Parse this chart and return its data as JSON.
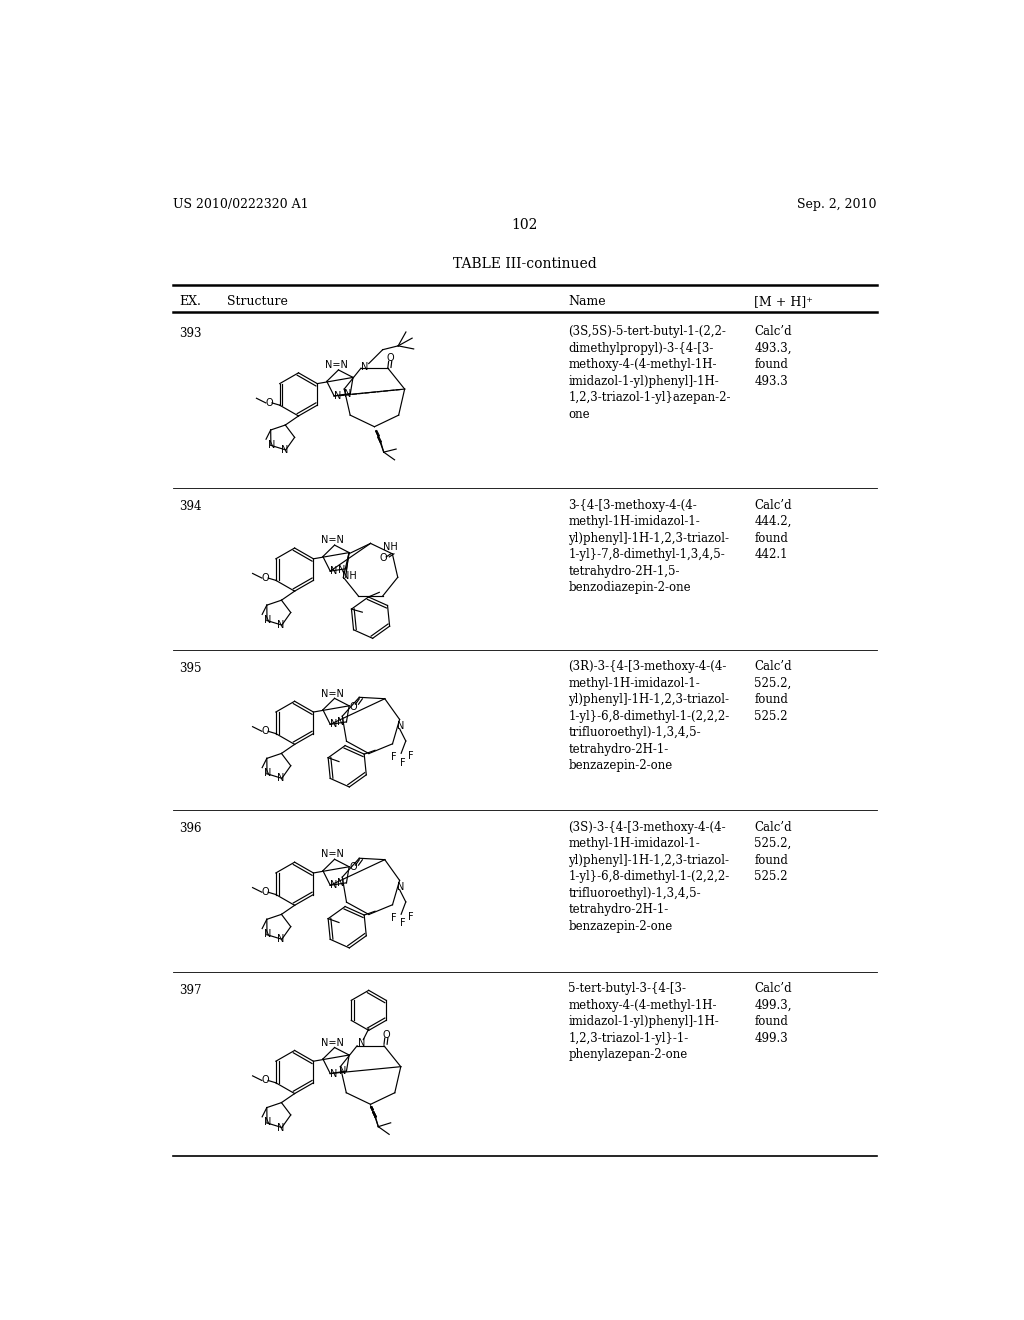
{
  "page_header_left": "US 2010/0222320 A1",
  "page_header_right": "Sep. 2, 2010",
  "page_number": "102",
  "table_title": "TABLE III-continued",
  "background_color": "#ffffff",
  "text_color": "#000000",
  "rows": [
    {
      "ex": "393",
      "name": "(3S,5S)-5-tert-butyl-1-(2,2-\ndimethylpropyl)-3-{4-[3-\nmethoxy-4-(4-methyl-1H-\nimidazol-1-yl)phenyl]-1H-\n1,2,3-triazol-1-yl}azepan-2-\none",
      "mh": "Calc’d\n493.3,\nfound\n493.3"
    },
    {
      "ex": "394",
      "name": "3-{4-[3-methoxy-4-(4-\nmethyl-1H-imidazol-1-\nyl)phenyl]-1H-1,2,3-triazol-\n1-yl}-7,8-dimethyl-1,3,4,5-\ntetrahydro-2H-1,5-\nbenzodiazepin-2-one",
      "mh": "Calc’d\n444.2,\nfound\n442.1"
    },
    {
      "ex": "395",
      "name": "(3R)-3-{4-[3-methoxy-4-(4-\nmethyl-1H-imidazol-1-\nyl)phenyl]-1H-1,2,3-triazol-\n1-yl}-6,8-dimethyl-1-(2,2,2-\ntrifluoroethyl)-1,3,4,5-\ntetrahydro-2H-1-\nbenzazepin-2-one",
      "mh": "Calc’d\n525.2,\nfound\n525.2"
    },
    {
      "ex": "396",
      "name": "(3S)-3-{4-[3-methoxy-4-(4-\nmethyl-1H-imidazol-1-\nyl)phenyl]-1H-1,2,3-triazol-\n1-yl}-6,8-dimethyl-1-(2,2,2-\ntrifluoroethyl)-1,3,4,5-\ntetrahydro-2H-1-\nbenzazepin-2-one",
      "mh": "Calc’d\n525.2,\nfound\n525.2"
    },
    {
      "ex": "397",
      "name": "5-tert-butyl-3-{4-[3-\nmethoxy-4-(4-methyl-1H-\nimidazol-1-yl)phenyl]-1H-\n1,2,3-triazol-1-yl}-1-\nphenylazepan-2-one",
      "mh": "Calc’d\n499.3,\nfound\n499.3"
    }
  ],
  "header_fontsize": 9,
  "body_fontsize": 8.5,
  "title_fontsize": 10,
  "page_num_fontsize": 10
}
